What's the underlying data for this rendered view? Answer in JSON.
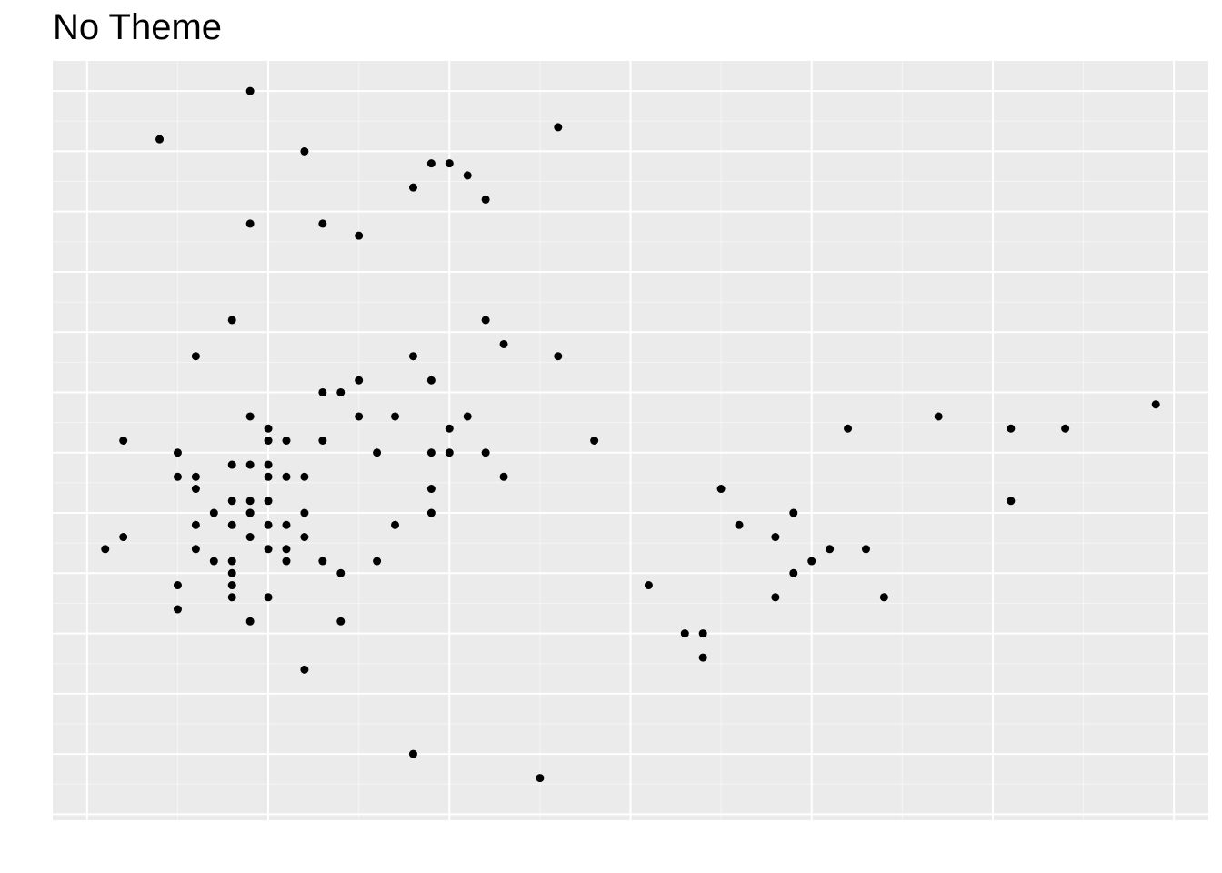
{
  "chart_data": {
    "type": "scatter",
    "title": "No Theme",
    "xlabel": "",
    "ylabel": "",
    "xlim": [
      -0.19,
      6.19
    ],
    "ylim": [
      -0.05,
      6.25
    ],
    "grid": true,
    "colors": {
      "panel": "#ebebeb",
      "grid_major": "#ffffff",
      "grid_minor": "#f5f5f5",
      "point": "#000000"
    },
    "points": [
      {
        "x": 0.1,
        "y": 2.2
      },
      {
        "x": 0.2,
        "y": 2.3
      },
      {
        "x": 0.2,
        "y": 3.1
      },
      {
        "x": 0.4,
        "y": 5.6
      },
      {
        "x": 0.5,
        "y": 1.7
      },
      {
        "x": 0.5,
        "y": 1.9
      },
      {
        "x": 0.5,
        "y": 2.8
      },
      {
        "x": 0.5,
        "y": 3.0
      },
      {
        "x": 0.6,
        "y": 2.2
      },
      {
        "x": 0.6,
        "y": 2.4
      },
      {
        "x": 0.6,
        "y": 2.7
      },
      {
        "x": 0.6,
        "y": 2.8
      },
      {
        "x": 0.6,
        "y": 3.8
      },
      {
        "x": 0.7,
        "y": 2.1
      },
      {
        "x": 0.7,
        "y": 2.5
      },
      {
        "x": 0.8,
        "y": 1.8
      },
      {
        "x": 0.8,
        "y": 1.9
      },
      {
        "x": 0.8,
        "y": 2.0
      },
      {
        "x": 0.8,
        "y": 2.1
      },
      {
        "x": 0.8,
        "y": 2.4
      },
      {
        "x": 0.8,
        "y": 2.6
      },
      {
        "x": 0.8,
        "y": 2.9
      },
      {
        "x": 0.8,
        "y": 4.1
      },
      {
        "x": 0.9,
        "y": 1.6
      },
      {
        "x": 0.9,
        "y": 2.3
      },
      {
        "x": 0.9,
        "y": 2.5
      },
      {
        "x": 0.9,
        "y": 2.5
      },
      {
        "x": 0.9,
        "y": 2.6
      },
      {
        "x": 0.9,
        "y": 2.9
      },
      {
        "x": 0.9,
        "y": 3.3
      },
      {
        "x": 0.9,
        "y": 4.9
      },
      {
        "x": 0.9,
        "y": 6.0
      },
      {
        "x": 1.0,
        "y": 1.8
      },
      {
        "x": 1.0,
        "y": 2.2
      },
      {
        "x": 1.0,
        "y": 2.4
      },
      {
        "x": 1.0,
        "y": 2.6
      },
      {
        "x": 1.0,
        "y": 2.8
      },
      {
        "x": 1.0,
        "y": 2.9
      },
      {
        "x": 1.0,
        "y": 3.1
      },
      {
        "x": 1.0,
        "y": 3.2
      },
      {
        "x": 1.1,
        "y": 2.1
      },
      {
        "x": 1.1,
        "y": 2.2
      },
      {
        "x": 1.1,
        "y": 2.4
      },
      {
        "x": 1.1,
        "y": 2.8
      },
      {
        "x": 1.1,
        "y": 3.1
      },
      {
        "x": 1.2,
        "y": 1.2
      },
      {
        "x": 1.2,
        "y": 2.3
      },
      {
        "x": 1.2,
        "y": 2.5
      },
      {
        "x": 1.2,
        "y": 2.8
      },
      {
        "x": 1.2,
        "y": 5.5
      },
      {
        "x": 1.3,
        "y": 2.1
      },
      {
        "x": 1.3,
        "y": 3.1
      },
      {
        "x": 1.3,
        "y": 3.5
      },
      {
        "x": 1.3,
        "y": 4.9
      },
      {
        "x": 1.4,
        "y": 1.6
      },
      {
        "x": 1.4,
        "y": 2.0
      },
      {
        "x": 1.4,
        "y": 3.5
      },
      {
        "x": 1.5,
        "y": 3.3
      },
      {
        "x": 1.5,
        "y": 3.6
      },
      {
        "x": 1.5,
        "y": 4.8
      },
      {
        "x": 1.6,
        "y": 2.1
      },
      {
        "x": 1.6,
        "y": 3.0
      },
      {
        "x": 1.7,
        "y": 2.4
      },
      {
        "x": 1.7,
        "y": 3.3
      },
      {
        "x": 1.8,
        "y": 0.5
      },
      {
        "x": 1.8,
        "y": 3.8
      },
      {
        "x": 1.8,
        "y": 5.2
      },
      {
        "x": 1.9,
        "y": 2.5
      },
      {
        "x": 1.9,
        "y": 2.7
      },
      {
        "x": 1.9,
        "y": 3.0
      },
      {
        "x": 1.9,
        "y": 3.6
      },
      {
        "x": 1.9,
        "y": 5.4
      },
      {
        "x": 2.0,
        "y": 3.0
      },
      {
        "x": 2.0,
        "y": 3.2
      },
      {
        "x": 2.0,
        "y": 5.4
      },
      {
        "x": 2.1,
        "y": 3.3
      },
      {
        "x": 2.1,
        "y": 5.3
      },
      {
        "x": 2.2,
        "y": 3.0
      },
      {
        "x": 2.2,
        "y": 4.1
      },
      {
        "x": 2.2,
        "y": 5.1
      },
      {
        "x": 2.3,
        "y": 2.8
      },
      {
        "x": 2.3,
        "y": 3.9
      },
      {
        "x": 2.5,
        "y": 0.3
      },
      {
        "x": 2.6,
        "y": 3.8
      },
      {
        "x": 2.6,
        "y": 5.7
      },
      {
        "x": 2.8,
        "y": 3.1
      },
      {
        "x": 3.1,
        "y": 1.9
      },
      {
        "x": 3.3,
        "y": 1.5
      },
      {
        "x": 3.4,
        "y": 1.3
      },
      {
        "x": 3.4,
        "y": 1.5
      },
      {
        "x": 3.5,
        "y": 2.7
      },
      {
        "x": 3.6,
        "y": 2.4
      },
      {
        "x": 3.8,
        "y": 1.8
      },
      {
        "x": 3.8,
        "y": 2.3
      },
      {
        "x": 3.9,
        "y": 2.0
      },
      {
        "x": 3.9,
        "y": 2.5
      },
      {
        "x": 4.0,
        "y": 2.1
      },
      {
        "x": 4.1,
        "y": 2.2
      },
      {
        "x": 4.2,
        "y": 3.2
      },
      {
        "x": 4.3,
        "y": 2.2
      },
      {
        "x": 4.4,
        "y": 1.8
      },
      {
        "x": 4.7,
        "y": 3.3
      },
      {
        "x": 5.1,
        "y": 2.6
      },
      {
        "x": 5.1,
        "y": 3.2
      },
      {
        "x": 5.4,
        "y": 3.2
      },
      {
        "x": 5.9,
        "y": 3.4
      }
    ]
  }
}
